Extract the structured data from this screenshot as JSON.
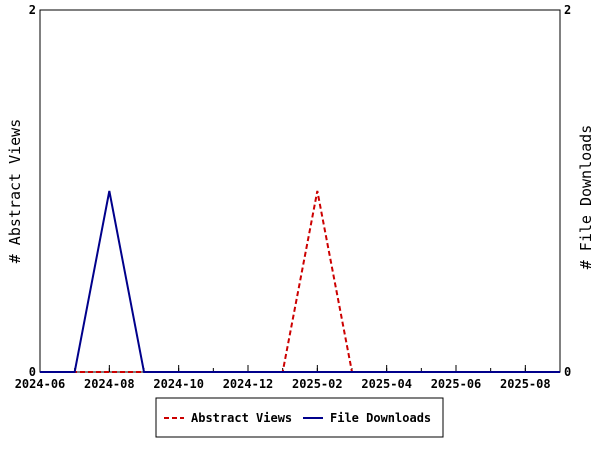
{
  "chart_data": {
    "type": "line",
    "x": [
      "2024-06",
      "2024-07",
      "2024-08",
      "2024-09",
      "2024-10",
      "2024-11",
      "2024-12",
      "2025-01",
      "2025-02",
      "2025-03",
      "2025-04",
      "2025-05",
      "2025-06",
      "2025-07",
      "2025-08",
      "2025-09"
    ],
    "x_ticks": [
      "2024-06",
      "2024-08",
      "2024-10",
      "2024-12",
      "2025-02",
      "2025-04",
      "2025-06",
      "2025-08"
    ],
    "x_range": [
      "2024-06",
      "2025-09"
    ],
    "series": [
      {
        "name": "Abstract Views",
        "axis": "left",
        "color": "#cc0000",
        "dash": "dashed",
        "values": [
          0,
          0,
          0,
          0,
          0,
          0,
          0,
          0,
          1,
          0,
          0,
          0,
          0,
          0,
          0,
          0
        ]
      },
      {
        "name": "File Downloads",
        "axis": "right",
        "color": "#00008b",
        "dash": "solid",
        "values": [
          0,
          0,
          1,
          0,
          0,
          0,
          0,
          0,
          0,
          0,
          0,
          0,
          0,
          0,
          0,
          0
        ]
      }
    ],
    "ylabel_left": "# Abstract Views",
    "ylabel_right": "# File Downloads",
    "ylim_left": [
      0,
      2
    ],
    "ylim_right": [
      0,
      2
    ],
    "yticks_left": [
      "0",
      "2"
    ],
    "yticks_right": [
      "0",
      "2"
    ],
    "grid": false,
    "legend_position": "bottom"
  }
}
